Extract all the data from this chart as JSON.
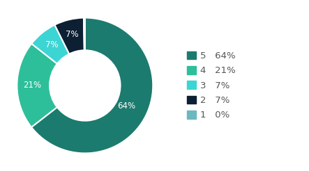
{
  "labels": [
    "5",
    "4",
    "3",
    "2",
    "1"
  ],
  "values": [
    64,
    21,
    7,
    7,
    0
  ],
  "colors": [
    "#1b7b6e",
    "#2dbf9a",
    "#3dd4d4",
    "#0d1f33",
    "#6ab8c0"
  ],
  "legend_labels": [
    "5   64%",
    "4   21%",
    "3   7%",
    "2   7%",
    "1   0%"
  ],
  "slice_labels": [
    "64%",
    "21%",
    "7%",
    "7%",
    ""
  ],
  "background_color": "#ffffff",
  "text_color": "#555555",
  "label_fontsize": 8.5,
  "legend_fontsize": 9.5,
  "donut_width": 0.48
}
